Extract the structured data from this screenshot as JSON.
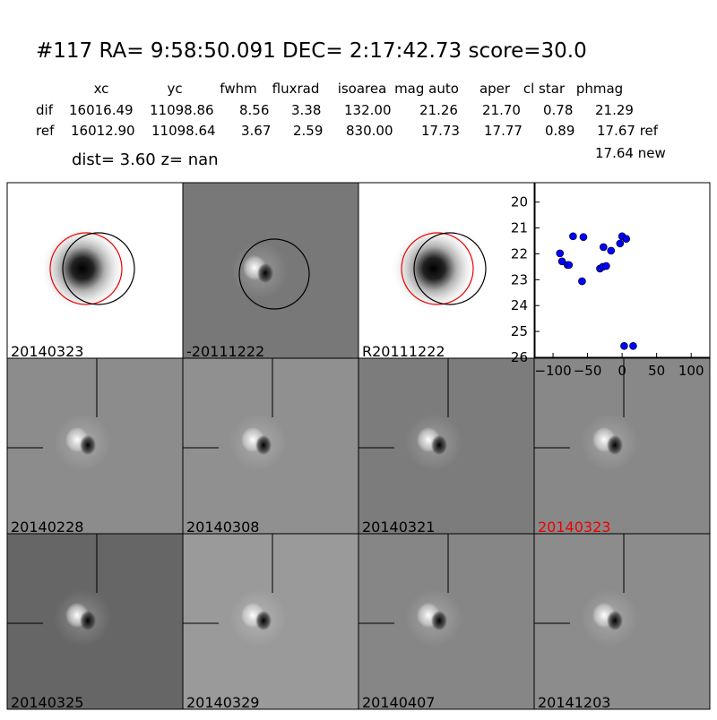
{
  "header": {
    "title": "#117   RA= 9:58:50.091 DEC= 2:17:42.73       score=30.0",
    "columns": [
      "xc",
      "yc",
      "fwhm",
      "fluxrad",
      "isoarea",
      "mag auto",
      "aper",
      "cl star",
      "phmag"
    ],
    "rows": [
      [
        "dif",
        "16016.49",
        "11098.86",
        "8.56",
        "3.38",
        "132.00",
        "21.26",
        "21.70",
        "0.78",
        "21.29"
      ],
      [
        "ref",
        "16012.90",
        "11098.64",
        "3.67",
        "2.59",
        "830.00",
        "17.73",
        "17.77",
        "0.89",
        "17.67 ref"
      ]
    ],
    "extra": "17.64 new",
    "dist": "dist=  3.60      z=   nan"
  },
  "panels": [
    "20140323",
    "-20111222",
    "R20111222",
    "20140228",
    "20140308",
    "20140321",
    "20140323",
    "20140325",
    "20140329",
    "20140407",
    "20141203"
  ],
  "chart_data": {
    "type": "scatter",
    "x": [
      -90,
      -87,
      -79,
      -77,
      -71,
      -56,
      -58,
      -32,
      -28,
      -27,
      -23,
      -16,
      -3,
      0,
      6,
      3,
      16
    ],
    "series": [
      {
        "color": "#0000ff",
        "values": [
          21.98,
          22.29,
          22.43,
          22.43,
          21.32,
          21.35,
          23.06,
          22.57,
          22.5,
          21.74,
          22.47,
          21.88,
          21.6,
          21.32,
          21.42,
          25.56,
          25.56
        ]
      }
    ],
    "xlim": [
      -126,
      127
    ],
    "ylim": [
      26,
      19.25
    ],
    "xticks": [
      {
        "value": -100,
        "label": "−100"
      },
      {
        "value": -50,
        "label": "−50"
      },
      0,
      50,
      100
    ],
    "yticks": [
      20,
      21,
      22,
      23,
      24,
      25,
      26
    ]
  }
}
